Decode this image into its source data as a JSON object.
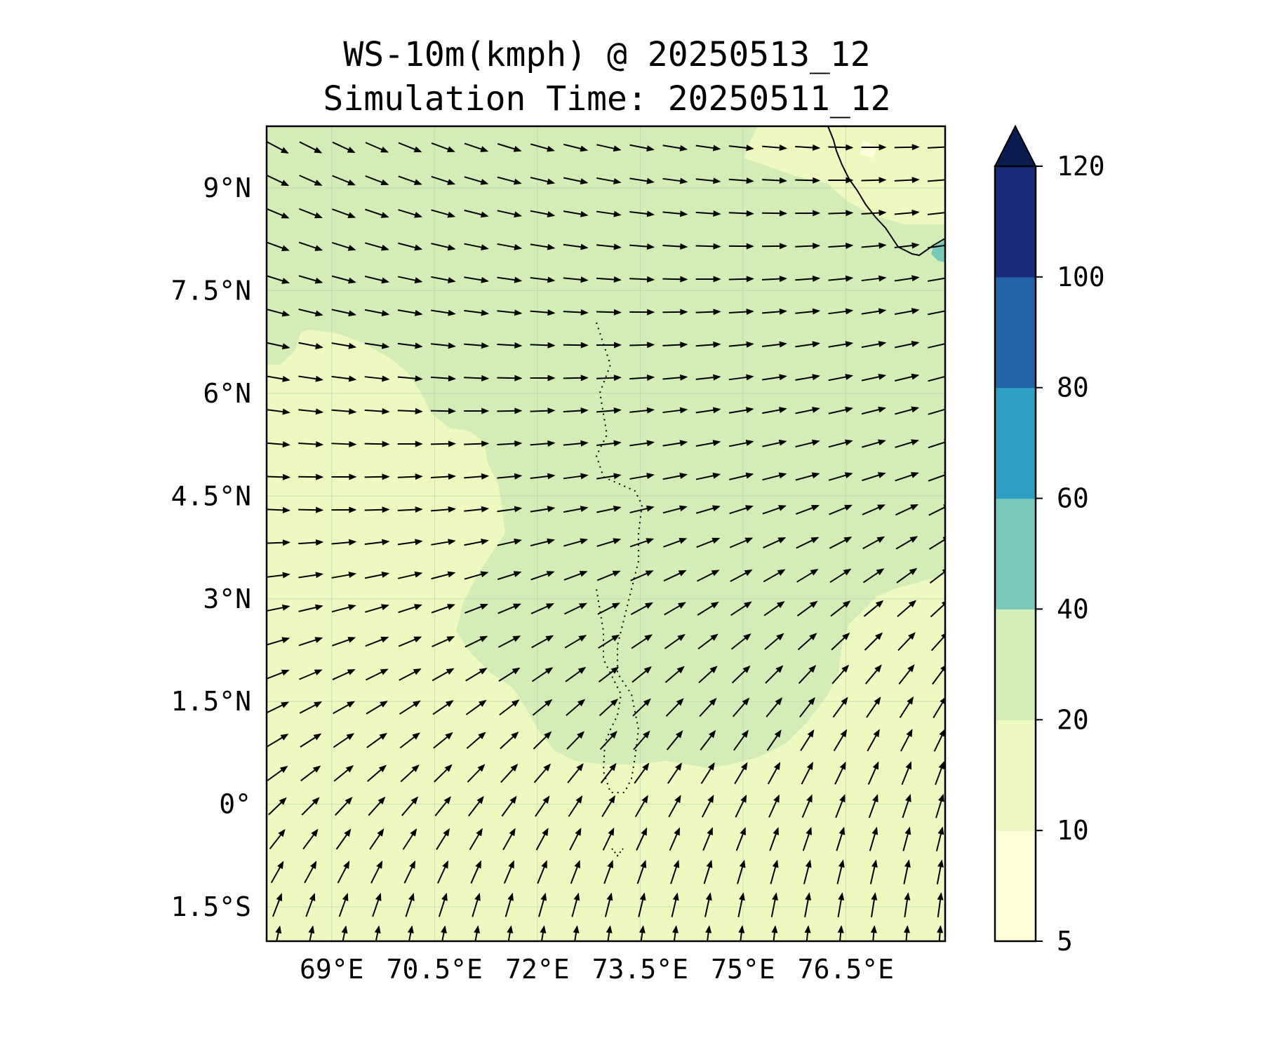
{
  "title": "WS-10m(kmph) @ 20250513_12",
  "subtitle": "Simulation Time: 20250511_12",
  "map": {
    "lon_range": [
      68.05,
      77.95
    ],
    "lat_range": [
      -2.0,
      9.9
    ],
    "lon_ticks": [
      {
        "value": 69,
        "label": "69°E"
      },
      {
        "value": 70.5,
        "label": "70.5°E"
      },
      {
        "value": 72,
        "label": "72°E"
      },
      {
        "value": 73.5,
        "label": "73.5°E"
      },
      {
        "value": 75,
        "label": "75°E"
      },
      {
        "value": 76.5,
        "label": "76.5°E"
      }
    ],
    "lat_ticks": [
      {
        "value": 9,
        "label": "9°N"
      },
      {
        "value": 7.5,
        "label": "7.5°N"
      },
      {
        "value": 6,
        "label": "6°N"
      },
      {
        "value": 4.5,
        "label": "4.5°N"
      },
      {
        "value": 3,
        "label": "3°N"
      },
      {
        "value": 1.5,
        "label": "1.5°N"
      },
      {
        "value": 0,
        "label": "0°"
      },
      {
        "value": -1.5,
        "label": "1.5°S"
      }
    ],
    "gridlines": true,
    "field_colors": {
      "5-10": "#ffffd9",
      "10-20": "#eef9c0",
      "20-40": "#d2edb6",
      "40-60": "#78c8bc",
      "60-80": "#2ea0c4",
      "80-100": "#2262a8",
      "100-120": "#1a2b7c",
      "over": "#0a1c50"
    }
  },
  "colorbar": {
    "levels": [
      5,
      10,
      20,
      40,
      60,
      80,
      100,
      120
    ],
    "labels": [
      "5",
      "10",
      "20",
      "40",
      "60",
      "80",
      "100",
      "120"
    ],
    "colors": [
      "#ffffd9",
      "#eef9c0",
      "#d2edb6",
      "#78c8bc",
      "#2ea0c4",
      "#2262a8",
      "#1a2b7c"
    ],
    "extend_color": "#0a1c50",
    "extend": "max"
  }
}
